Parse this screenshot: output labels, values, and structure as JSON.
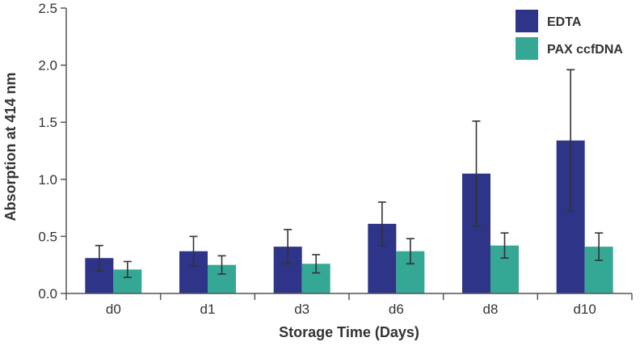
{
  "chart_data": {
    "type": "bar",
    "title": "",
    "xlabel": "Storage Time (Days)",
    "ylabel": "Absorption at 414 nm",
    "categories": [
      "d0",
      "d1",
      "d3",
      "d6",
      "d8",
      "d10"
    ],
    "ylim": [
      0,
      2.5
    ],
    "yticks": [
      "0.0",
      "0.5",
      "1.0",
      "1.5",
      "2.0",
      "2.5"
    ],
    "grid": false,
    "legend_position": "top-right",
    "series": [
      {
        "name": "EDTA",
        "color": "#2e3487",
        "values": [
          0.31,
          0.37,
          0.41,
          0.61,
          1.05,
          1.34
        ],
        "errors": [
          0.11,
          0.13,
          0.15,
          0.19,
          0.46,
          0.62
        ]
      },
      {
        "name": "PAX ccfDNA",
        "color": "#35a795",
        "values": [
          0.21,
          0.25,
          0.26,
          0.37,
          0.42,
          0.41
        ],
        "errors": [
          0.07,
          0.08,
          0.08,
          0.11,
          0.11,
          0.12
        ]
      }
    ]
  }
}
